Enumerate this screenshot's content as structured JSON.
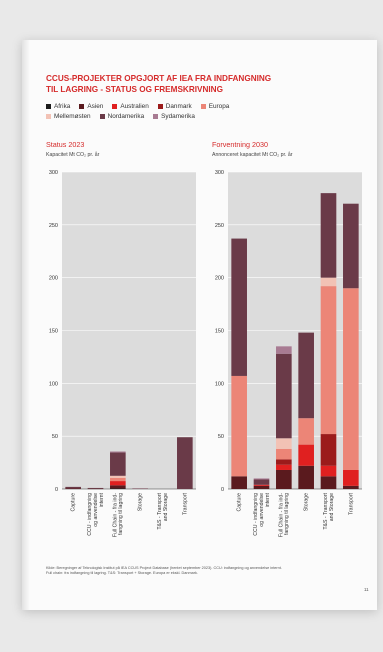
{
  "title_line1": "CCUS-PROJEKTER OPGJORT AF IEA FRA INDFANGNING",
  "title_line2": "TIL LAGRING - STATUS OG FREMSKRIVNING",
  "legend": [
    {
      "name": "Afrika",
      "color": "#1c1c1c"
    },
    {
      "name": "Asien",
      "color": "#5a1a1e"
    },
    {
      "name": "Australien",
      "color": "#e02020"
    },
    {
      "name": "Danmark",
      "color": "#9b1b1b"
    },
    {
      "name": "Europa",
      "color": "#ec8577"
    },
    {
      "name": "Mellemøsten",
      "color": "#f2c2b5"
    },
    {
      "name": "Nordamerika",
      "color": "#6a3a48"
    },
    {
      "name": "Sydamerika",
      "color": "#a87b92"
    }
  ],
  "footnote_line1": "Kilde: Beregninger af Teknologisk Institut på IEA CCUS Project Database (hentet september 2023). CCU: indfangning og anvendelse internt.",
  "footnote_line2": "Full chain: fra indfangning til lagring. T&S: Transport + Storage. Europa er ekskl. Danmark.",
  "page_number": "11",
  "chart_data": [
    {
      "type": "bar",
      "stacked": true,
      "title": "Status 2023",
      "ylabel": "Kapacitet Mt CO₂ pr. år",
      "ylim": [
        0,
        300
      ],
      "yticks": [
        0,
        50,
        100,
        150,
        200,
        250,
        300
      ],
      "categories": [
        "Capture",
        "CCU - indfangning og anvendelse internt",
        "Full Chain - fra indfangning til lagring",
        "Storage",
        "T&S - Transport and Storage",
        "Transport"
      ],
      "category_labels": [
        [
          "Capture"
        ],
        [
          "CCU - indfangning",
          "og anvendelse",
          "internt"
        ],
        [
          "Full Chain - fra ind-",
          "fangning til lagring"
        ],
        [
          "Storage"
        ],
        [
          "T&S - Transport",
          "and Storage"
        ],
        [
          "Transport"
        ]
      ],
      "series": [
        {
          "name": "Afrika",
          "values": [
            0,
            0,
            0.5,
            0,
            0,
            0
          ]
        },
        {
          "name": "Asien",
          "values": [
            0.5,
            0.3,
            3,
            0,
            0,
            0
          ]
        },
        {
          "name": "Australien",
          "values": [
            0,
            0,
            4,
            0,
            0,
            0
          ]
        },
        {
          "name": "Danmark",
          "values": [
            0,
            0,
            0,
            0,
            0,
            0
          ]
        },
        {
          "name": "Europa",
          "values": [
            0,
            0,
            3,
            0,
            0,
            0
          ]
        },
        {
          "name": "Mellemøsten",
          "values": [
            0,
            0,
            2,
            0,
            0,
            0
          ]
        },
        {
          "name": "Nordamerika",
          "values": [
            1.5,
            0.7,
            22,
            0.5,
            0,
            49
          ]
        },
        {
          "name": "Sydamerika",
          "values": [
            0,
            0,
            1,
            0,
            0,
            0
          ]
        }
      ]
    },
    {
      "type": "bar",
      "stacked": true,
      "title": "Forventning 2030",
      "ylabel": "Annonceret kapacitet Mt CO₂ pr. år",
      "ylim": [
        0,
        300
      ],
      "yticks": [
        0,
        50,
        100,
        150,
        200,
        250,
        300
      ],
      "categories": [
        "Capture",
        "CCU - indfangning og anvendelse internt",
        "Full Chain - fra indfangning til lagring",
        "Storage",
        "T&S - Transport and Storage",
        "Transport"
      ],
      "category_labels": [
        [
          "Capture"
        ],
        [
          "CCU - indfangning",
          "og anvendelse",
          "internt"
        ],
        [
          "Full Chain - fra ind-",
          "fangning til lagring"
        ],
        [
          "Storage"
        ],
        [
          "T&S - Transport",
          "and Storage"
        ],
        [
          "Transport"
        ]
      ],
      "series": [
        {
          "name": "Afrika",
          "values": [
            0,
            0,
            0,
            0,
            0,
            0
          ]
        },
        {
          "name": "Asien",
          "values": [
            12,
            3,
            18,
            22,
            12,
            3
          ]
        },
        {
          "name": "Australien",
          "values": [
            0,
            1,
            5,
            20,
            10,
            15
          ]
        },
        {
          "name": "Danmark",
          "values": [
            0,
            0,
            5,
            0,
            30,
            0
          ]
        },
        {
          "name": "Europa",
          "values": [
            95,
            0,
            10,
            25,
            140,
            172
          ]
        },
        {
          "name": "Mellemøsten",
          "values": [
            0,
            0,
            10,
            0,
            8,
            0
          ]
        },
        {
          "name": "Nordamerika",
          "values": [
            130,
            5,
            80,
            81,
            80,
            80
          ]
        },
        {
          "name": "Sydamerika",
          "values": [
            0,
            1,
            7,
            0,
            0,
            0
          ]
        }
      ]
    }
  ]
}
